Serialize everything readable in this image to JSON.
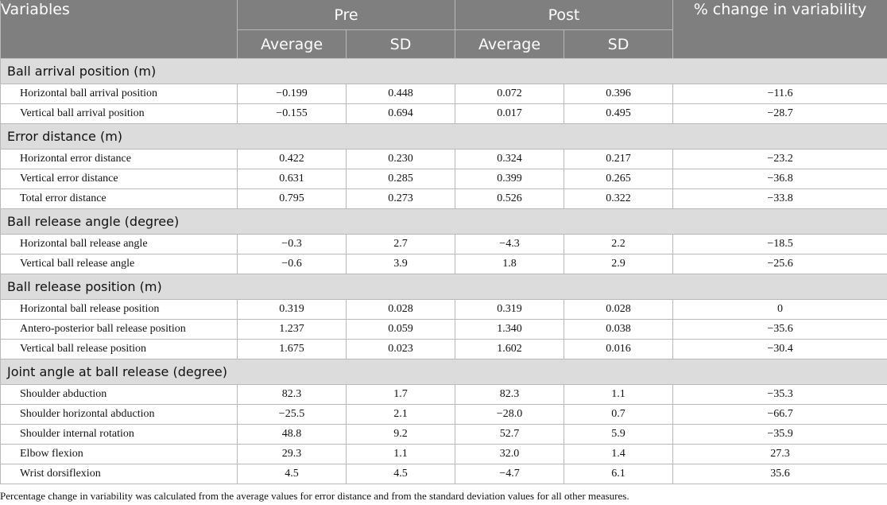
{
  "header": {
    "variables": "Variables",
    "pre": "Pre",
    "post": "Post",
    "pct_change": "% change in variability",
    "average": "Average",
    "sd": "SD"
  },
  "sections": [
    {
      "title": "Ball arrival position (m)",
      "rows": [
        {
          "name": "Horizontal ball arrival position",
          "pre_avg": "−0.199",
          "pre_sd": "0.448",
          "post_avg": "0.072",
          "post_sd": "0.396",
          "pct": "−11.6"
        },
        {
          "name": "Vertical ball arrival position",
          "pre_avg": "−0.155",
          "pre_sd": "0.694",
          "post_avg": "0.017",
          "post_sd": "0.495",
          "pct": "−28.7"
        }
      ]
    },
    {
      "title": "Error distance (m)",
      "rows": [
        {
          "name": "Horizontal error distance",
          "pre_avg": "0.422",
          "pre_sd": "0.230",
          "post_avg": "0.324",
          "post_sd": "0.217",
          "pct": "−23.2"
        },
        {
          "name": "Vertical error distance",
          "pre_avg": "0.631",
          "pre_sd": "0.285",
          "post_avg": "0.399",
          "post_sd": "0.265",
          "pct": "−36.8"
        },
        {
          "name": "Total error distance",
          "pre_avg": "0.795",
          "pre_sd": "0.273",
          "post_avg": "0.526",
          "post_sd": "0.322",
          "pct": "−33.8"
        }
      ]
    },
    {
      "title": "Ball release angle (degree)",
      "rows": [
        {
          "name": "Horizontal ball release angle",
          "pre_avg": "−0.3",
          "pre_sd": "2.7",
          "post_avg": "−4.3",
          "post_sd": "2.2",
          "pct": "−18.5"
        },
        {
          "name": "Vertical ball release angle",
          "pre_avg": "−0.6",
          "pre_sd": "3.9",
          "post_avg": "1.8",
          "post_sd": "2.9",
          "pct": "−25.6"
        }
      ]
    },
    {
      "title": "Ball release position (m)",
      "rows": [
        {
          "name": "Horizontal ball release position",
          "pre_avg": "0.319",
          "pre_sd": "0.028",
          "post_avg": "0.319",
          "post_sd": "0.028",
          "pct": "0"
        },
        {
          "name": "Antero-posterior ball release position",
          "pre_avg": "1.237",
          "pre_sd": "0.059",
          "post_avg": "1.340",
          "post_sd": "0.038",
          "pct": "−35.6"
        },
        {
          "name": "Vertical ball release position",
          "pre_avg": "1.675",
          "pre_sd": "0.023",
          "post_avg": "1.602",
          "post_sd": "0.016",
          "pct": "−30.4"
        }
      ]
    },
    {
      "title": "Joint angle at ball release (degree)",
      "rows": [
        {
          "name": "Shoulder abduction",
          "pre_avg": "82.3",
          "pre_sd": "1.7",
          "post_avg": "82.3",
          "post_sd": "1.1",
          "pct": "−35.3"
        },
        {
          "name": "Shoulder horizontal abduction",
          "pre_avg": "−25.5",
          "pre_sd": "2.1",
          "post_avg": "−28.0",
          "post_sd": "0.7",
          "pct": "−66.7"
        },
        {
          "name": "Shoulder internal rotation",
          "pre_avg": "48.8",
          "pre_sd": "9.2",
          "post_avg": "52.7",
          "post_sd": "5.9",
          "pct": "−35.9"
        },
        {
          "name": "Elbow flexion",
          "pre_avg": "29.3",
          "pre_sd": "1.1",
          "post_avg": "32.0",
          "post_sd": "1.4",
          "pct": "27.3"
        },
        {
          "name": "Wrist dorsiflexion",
          "pre_avg": "4.5",
          "pre_sd": "4.5",
          "post_avg": "−4.7",
          "post_sd": "6.1",
          "pct": "35.6"
        }
      ]
    }
  ],
  "footnote": "Percentage change in variability was calculated from the average values for error distance and from the standard deviation values for all other measures."
}
